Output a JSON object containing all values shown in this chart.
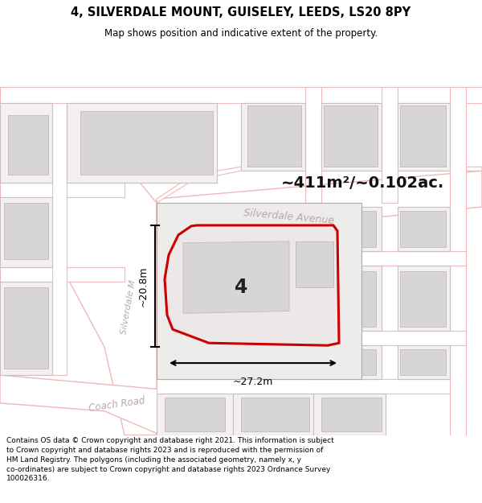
{
  "title": "4, SILVERDALE MOUNT, GUISELEY, LEEDS, LS20 8PY",
  "subtitle": "Map shows position and indicative extent of the property.",
  "footer": "Contains OS data © Crown copyright and database right 2021. This information is subject to Crown copyright and database rights 2023 and is reproduced with the permission of HM Land Registry. The polygons (including the associated geometry, namely x, y co-ordinates) are subject to Crown copyright and database rights 2023 Ordnance Survey 100026316.",
  "area_label": "~411m²/~0.102ac.",
  "width_label": "~27.2m",
  "height_label": "~20.8m",
  "property_number": "4",
  "road_label_avenue": "Silverdale Avenue",
  "road_label_mount": "Silverdale M",
  "road_label_coach": "Coach Road",
  "bg_color": "#f2eded",
  "road_fill": "#ffffff",
  "road_stroke": "#f0b8b8",
  "plot_outline": "#c8c0c0",
  "bld_fill": "#d8d5d5",
  "bld_stroke": "#c5c0c0",
  "property_stroke": "#cc0000",
  "property_fill": "#ede8e8"
}
